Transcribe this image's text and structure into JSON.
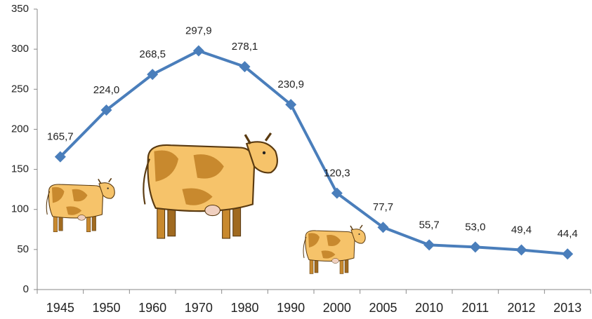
{
  "chart_data": {
    "type": "line",
    "categories": [
      "1945",
      "1950",
      "1960",
      "1970",
      "1980",
      "1990",
      "2000",
      "2005",
      "2010",
      "2011",
      "2012",
      "2013"
    ],
    "values": [
      165.7,
      224.0,
      268.5,
      297.9,
      278.1,
      230.9,
      120.3,
      77.7,
      55.7,
      53.0,
      49.4,
      44.4
    ],
    "value_labels": [
      "165,7",
      "224,0",
      "268,5",
      "297,9",
      "278,1",
      "230,9",
      "120,3",
      "77,7",
      "55,7",
      "53,0",
      "49,4",
      "44,4"
    ],
    "color": "#4a7ebb",
    "ylim": [
      0,
      350
    ],
    "yticks": [
      0,
      50,
      100,
      150,
      200,
      250,
      300,
      350
    ],
    "grid": false
  }
}
